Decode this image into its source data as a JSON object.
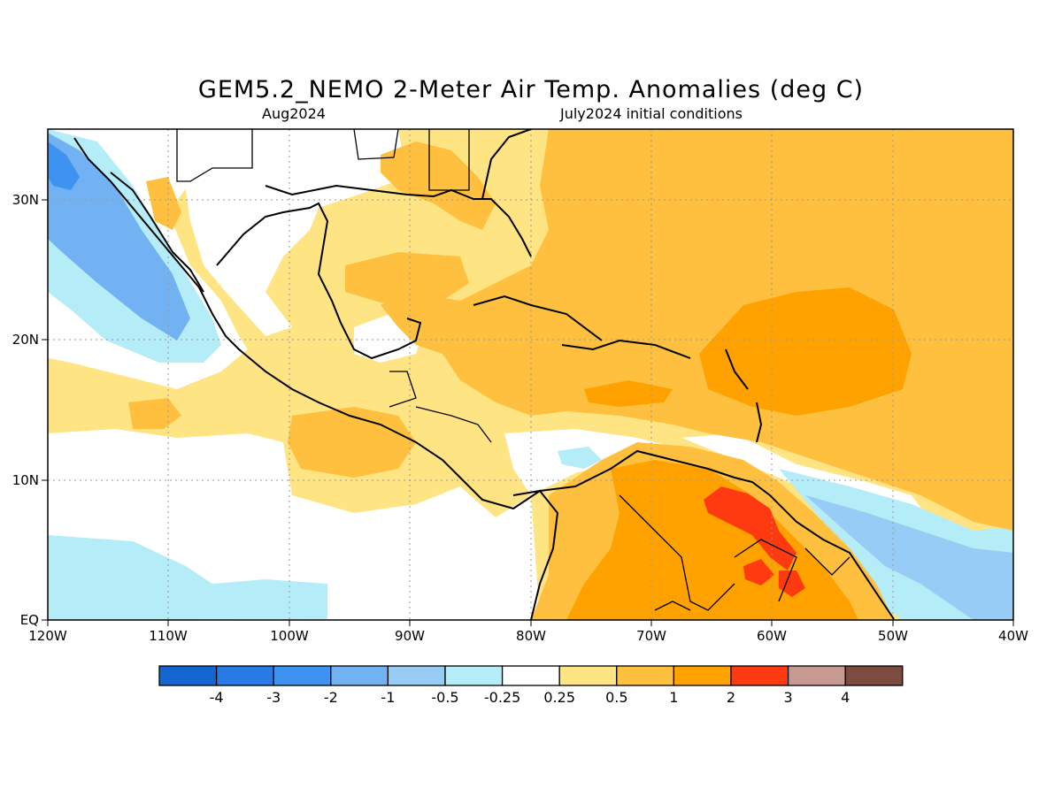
{
  "header": {
    "title": "GEM5.2_NEMO 2-Meter Air Temp. Anomalies (deg C)",
    "valid_month": "Aug2024",
    "initial_conditions": "July2024 initial conditions"
  },
  "map": {
    "extent": {
      "lon": [
        -120,
        -40
      ],
      "lat": [
        0,
        35
      ]
    },
    "lon_ticks": [
      "120W",
      "110W",
      "100W",
      "90W",
      "80W",
      "70W",
      "60W",
      "50W",
      "40W"
    ],
    "lat_ticks": [
      "EQ",
      "10N",
      "20N",
      "30N"
    ],
    "gridlines": "dotted"
  },
  "colorbar": {
    "colors": [
      "#1565d0",
      "#2a7ae6",
      "#3f93f0",
      "#73b2f2",
      "#97ccf6",
      "#b4ecf8",
      "#ffffff",
      "#ffe483",
      "#ffc040",
      "#ffa200",
      "#ff3a10",
      "#c99a92",
      "#7d4c41"
    ],
    "labels": [
      "-4",
      "-3",
      "-2",
      "-1",
      "-0.5",
      "-0.25",
      "0.25",
      "0.5",
      "1",
      "2",
      "3",
      "4"
    ]
  },
  "palette": {
    "cold_strong": "#73b2f2",
    "cold_weak": "#b4ecf8",
    "warm_weak": "#ffe483",
    "warm_mid": "#ffc040",
    "warm_strong": "#ffa200",
    "hot": "#ff3a10"
  }
}
